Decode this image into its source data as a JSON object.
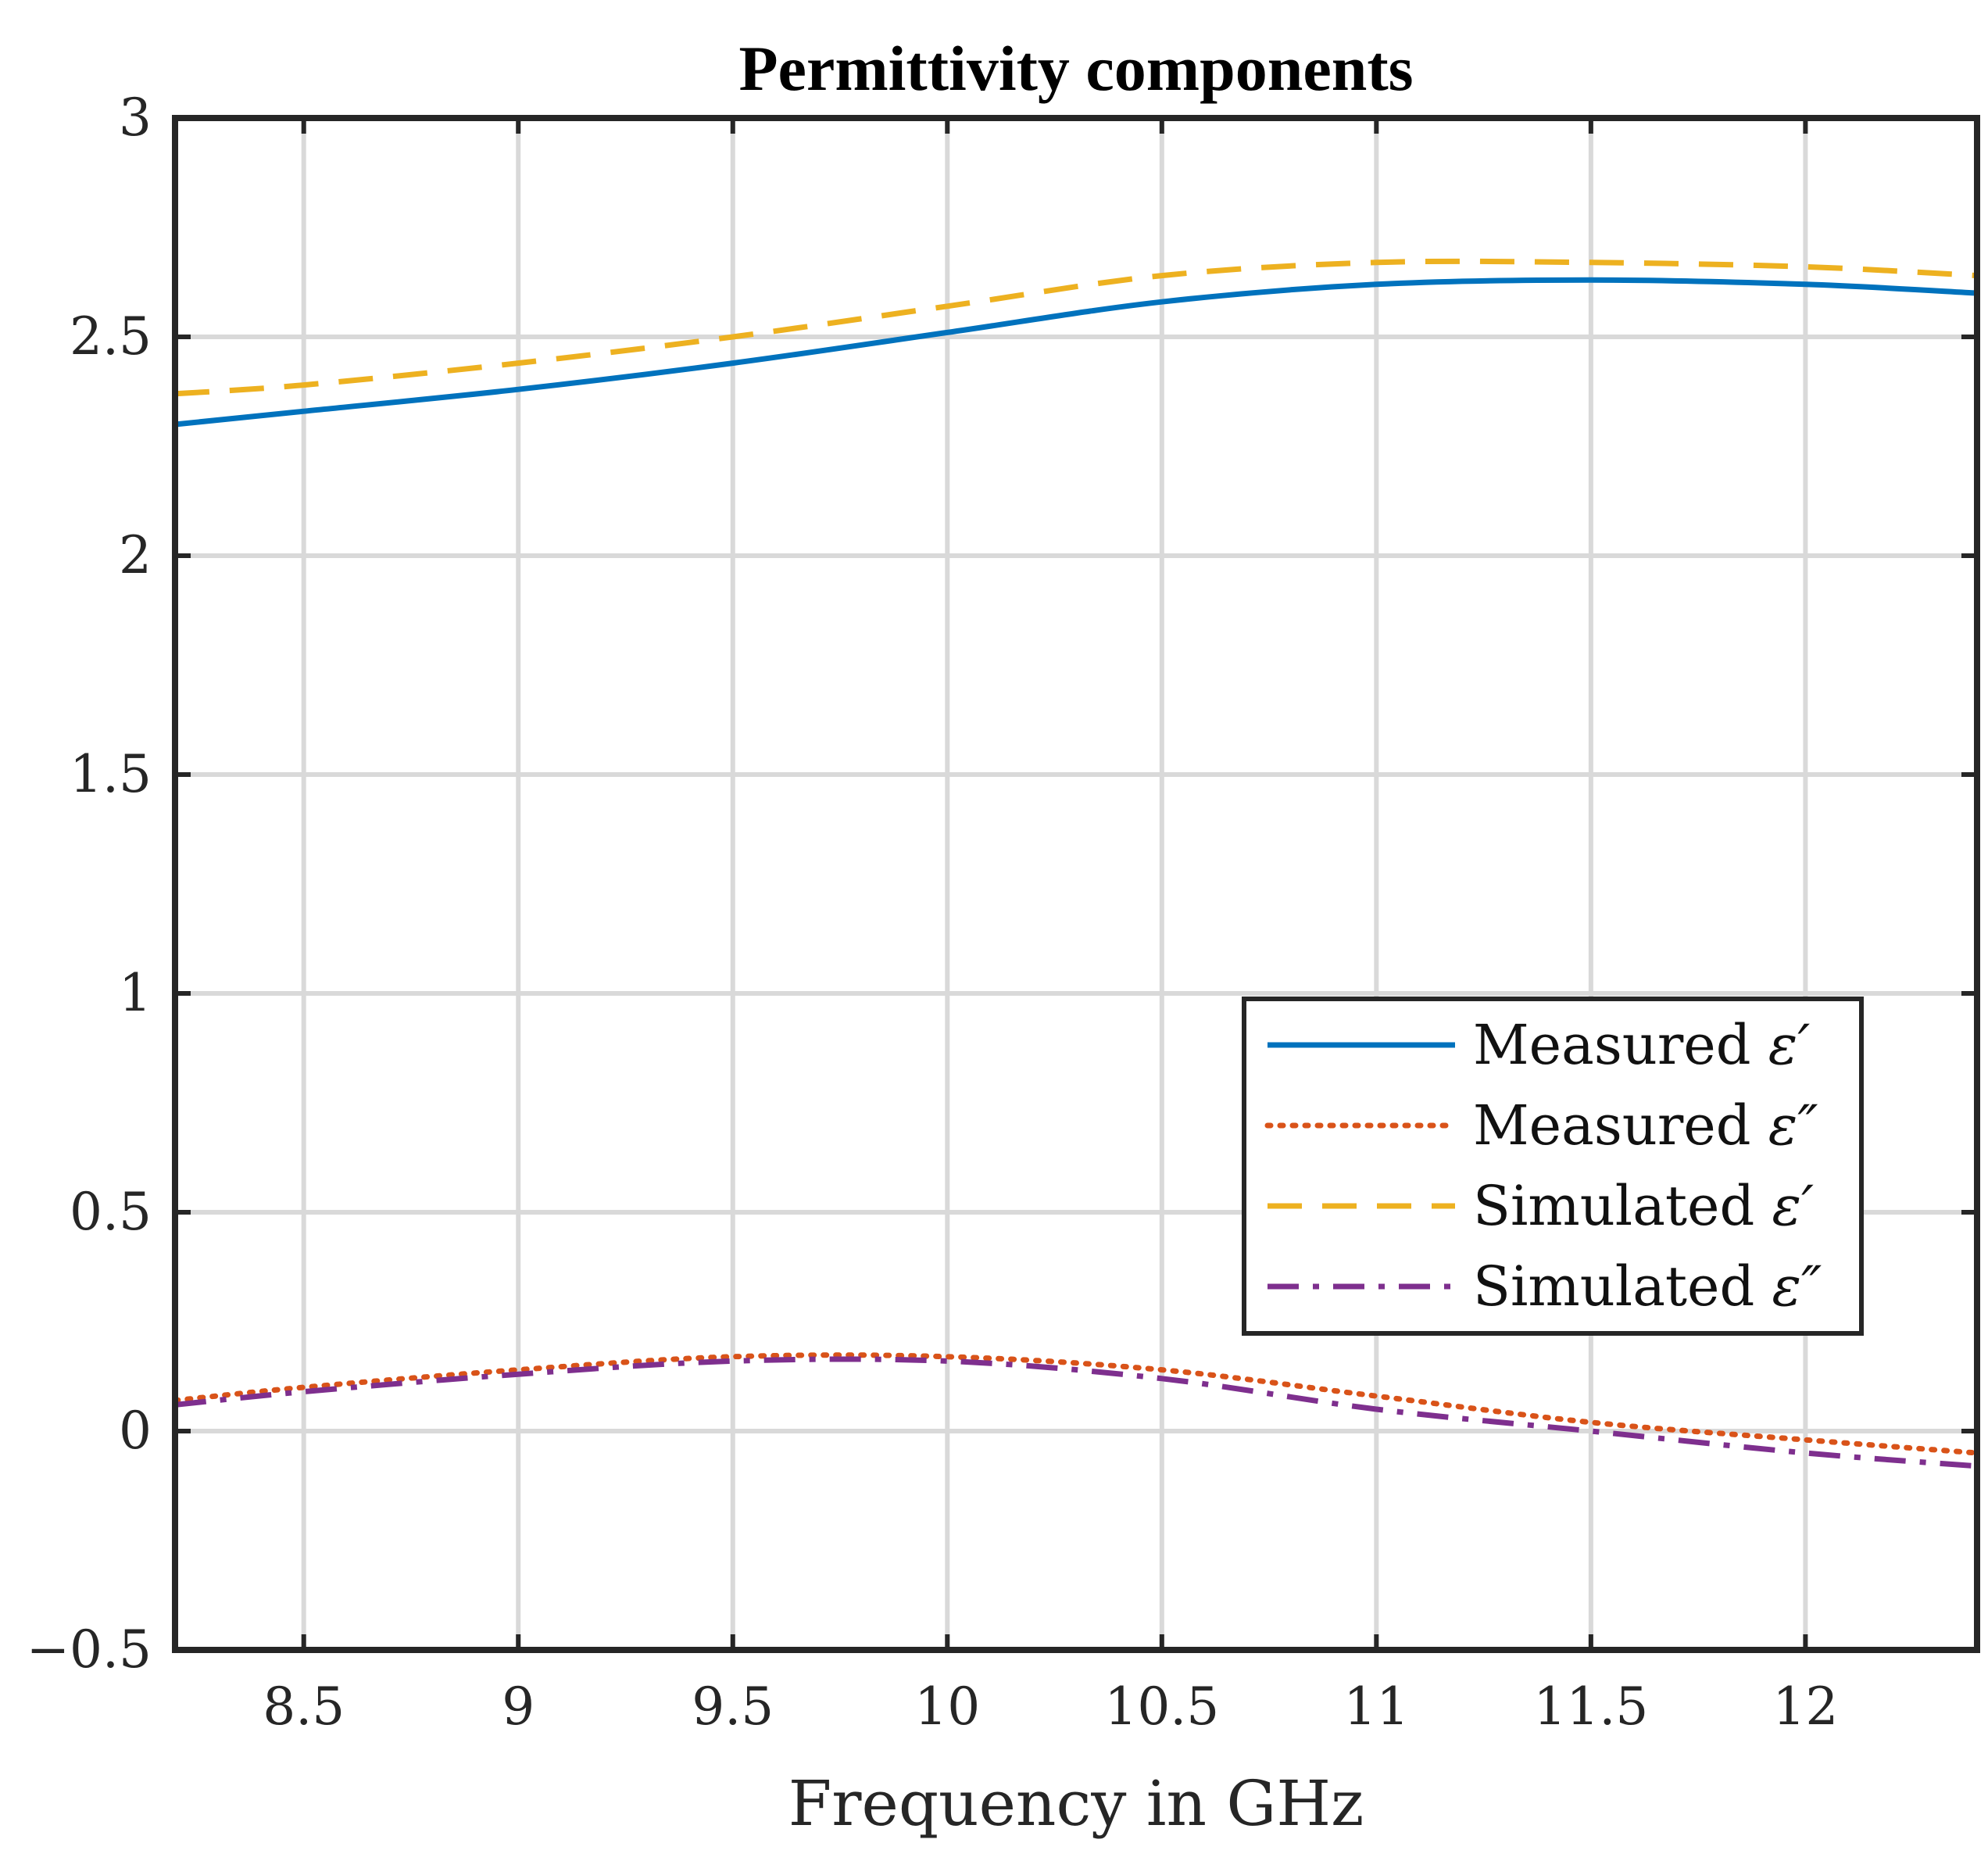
{
  "chart_data": {
    "type": "line",
    "title": "Permittivity components",
    "xlabel": "Frequency in GHz",
    "ylabel": "",
    "xlim": [
      8.2,
      12.4
    ],
    "ylim": [
      -0.5,
      3
    ],
    "xticks": [
      8.5,
      9,
      9.5,
      10,
      10.5,
      11,
      11.5,
      12
    ],
    "xtick_labels": [
      "8.5",
      "9",
      "9.5",
      "10",
      "10.5",
      "11",
      "11.5",
      "12"
    ],
    "yticks": [
      -0.5,
      0,
      0.5,
      1,
      1.5,
      2,
      2.5,
      3
    ],
    "ytick_labels": [
      "−0.5",
      "0",
      "0.5",
      "1",
      "1.5",
      "2",
      "2.5",
      "3"
    ],
    "grid": true,
    "legend_position": "lower-right",
    "x": [
      8.2,
      8.5,
      9,
      9.5,
      10,
      10.5,
      11,
      11.5,
      12,
      12.4
    ],
    "series": [
      {
        "name": "Measured",
        "symbol": "ε′",
        "color": "#0072BD",
        "style": "solid",
        "values": [
          2.3,
          2.33,
          2.38,
          2.44,
          2.51,
          2.58,
          2.62,
          2.63,
          2.62,
          2.6
        ]
      },
      {
        "name": "Measured",
        "symbol": "ε″",
        "color": "#D95319",
        "style": "dotted",
        "values": [
          0.07,
          0.1,
          0.14,
          0.17,
          0.17,
          0.14,
          0.08,
          0.02,
          -0.02,
          -0.05
        ]
      },
      {
        "name": "Simulated",
        "symbol": "ε′",
        "color": "#EDB120",
        "style": "dashed",
        "values": [
          2.37,
          2.39,
          2.44,
          2.5,
          2.57,
          2.64,
          2.67,
          2.67,
          2.66,
          2.64
        ]
      },
      {
        "name": "Simulated",
        "symbol": "ε″",
        "color": "#7E2F8E",
        "style": "dashdot",
        "values": [
          0.06,
          0.09,
          0.13,
          0.16,
          0.16,
          0.12,
          0.05,
          0.0,
          -0.05,
          -0.08
        ]
      }
    ]
  }
}
